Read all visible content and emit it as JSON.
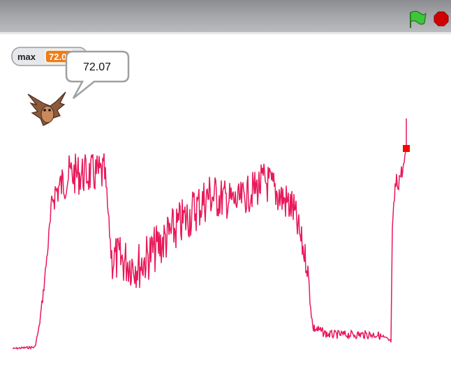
{
  "monitor": {
    "label": "max",
    "value": "72.07"
  },
  "speech_bubble": {
    "text": "72.07"
  }
}
